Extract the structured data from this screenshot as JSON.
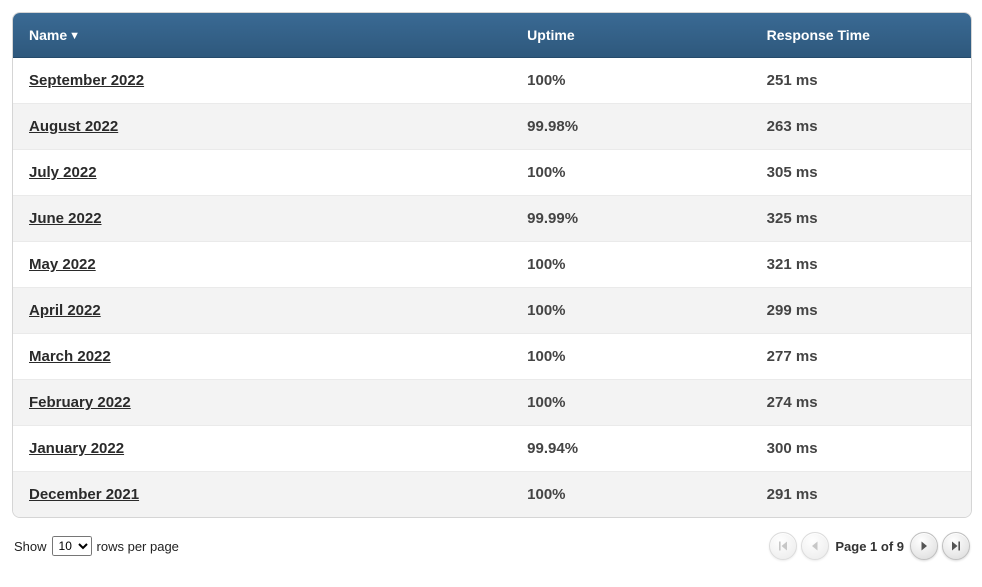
{
  "table": {
    "header_bg_top": "#3a6a94",
    "header_bg_bottom": "#2e587c",
    "row_even_bg": "#f3f3f3",
    "row_odd_bg": "#ffffff",
    "columns": {
      "name": {
        "label": "Name",
        "sort_indicator": "▼"
      },
      "uptime": {
        "label": "Uptime"
      },
      "response": {
        "label": "Response Time"
      }
    },
    "rows": [
      {
        "name": "September 2022",
        "uptime": "100%",
        "response": "251 ms"
      },
      {
        "name": "August 2022",
        "uptime": "99.98%",
        "response": "263 ms"
      },
      {
        "name": "July 2022",
        "uptime": "100%",
        "response": "305 ms"
      },
      {
        "name": "June 2022",
        "uptime": "99.99%",
        "response": "325 ms"
      },
      {
        "name": "May 2022",
        "uptime": "100%",
        "response": "321 ms"
      },
      {
        "name": "April 2022",
        "uptime": "100%",
        "response": "299 ms"
      },
      {
        "name": "March 2022",
        "uptime": "100%",
        "response": "277 ms"
      },
      {
        "name": "February 2022",
        "uptime": "100%",
        "response": "274 ms"
      },
      {
        "name": "January 2022",
        "uptime": "99.94%",
        "response": "300 ms"
      },
      {
        "name": "December 2021",
        "uptime": "100%",
        "response": "291 ms"
      }
    ]
  },
  "footer": {
    "show_label_prefix": "Show",
    "show_label_suffix": "rows per page",
    "rows_per_page_selected": "10",
    "rows_per_page_options": [
      "10"
    ],
    "page_indicator": "Page 1 of 9",
    "buttons": {
      "first": {
        "enabled": false
      },
      "prev": {
        "enabled": false
      },
      "next": {
        "enabled": true
      },
      "last": {
        "enabled": true
      }
    },
    "icon_color_enabled": "#555555",
    "icon_color_disabled": "#9a9a9a"
  }
}
